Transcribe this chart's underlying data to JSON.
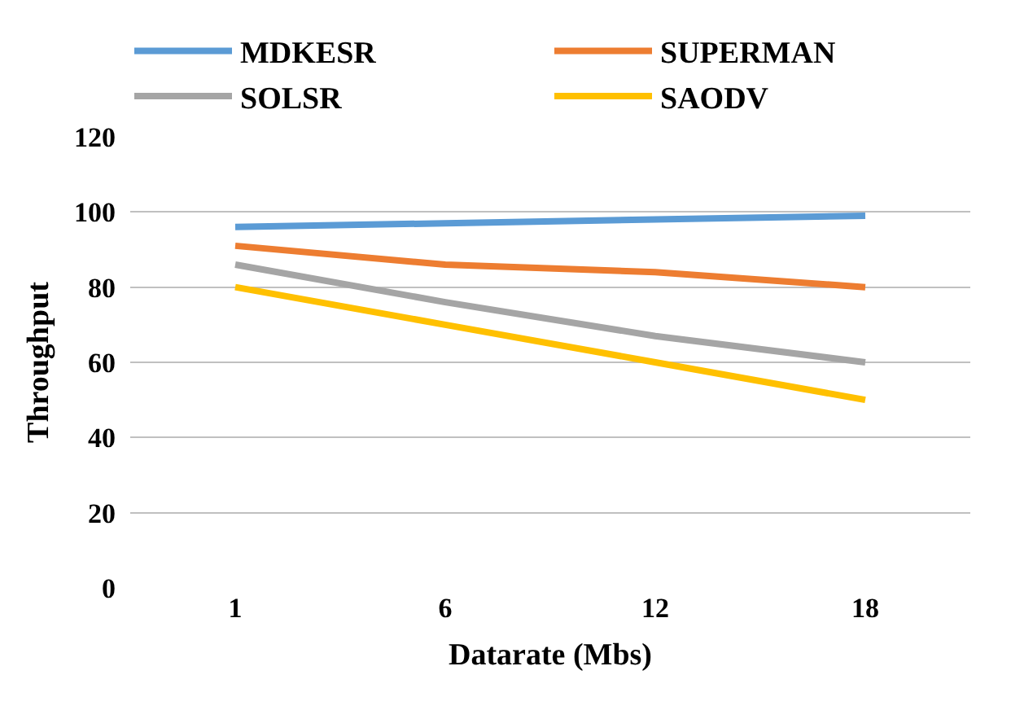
{
  "chart_data": {
    "type": "line",
    "xlabel": "Datarate (Mbs)",
    "ylabel": "Throughput",
    "categories": [
      "1",
      "6",
      "12",
      "18"
    ],
    "series": [
      {
        "name": "MDKESR",
        "color": "#5b9bd5",
        "values": [
          96,
          97,
          98,
          99
        ]
      },
      {
        "name": "SUPERMAN",
        "color": "#ed7d31",
        "values": [
          91,
          86,
          84,
          80
        ]
      },
      {
        "name": "SOLSR",
        "color": "#a5a5a5",
        "values": [
          86,
          76,
          67,
          60
        ]
      },
      {
        "name": "SAODV",
        "color": "#ffc000",
        "values": [
          80,
          70,
          60,
          50
        ]
      }
    ],
    "ylim": [
      0,
      120
    ],
    "yticks": [
      0,
      20,
      40,
      60,
      80,
      100,
      120
    ],
    "grid": "y",
    "legend": "top",
    "marker": "none",
    "line_style": "solid"
  }
}
